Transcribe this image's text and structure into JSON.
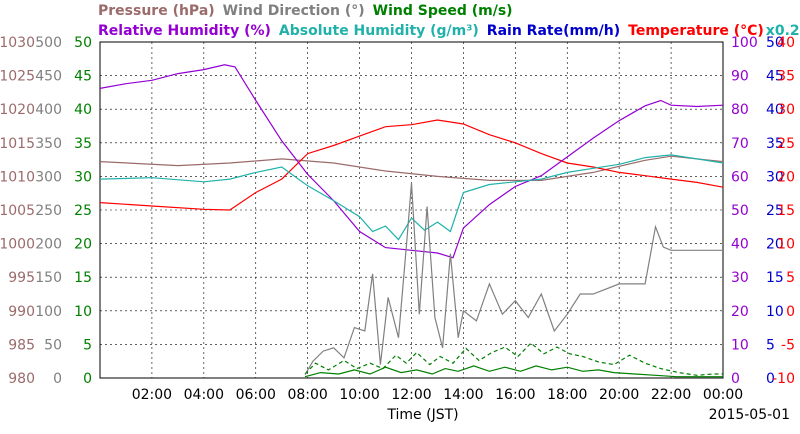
{
  "chart_data": {
    "type": "line",
    "date": "2015-05-01",
    "xlabel": "Time (JST)",
    "x_ticks": [
      "02:00",
      "04:00",
      "06:00",
      "08:00",
      "10:00",
      "12:00",
      "14:00",
      "16:00",
      "18:00",
      "20:00",
      "22:00",
      "00:00"
    ],
    "x_range_hours": [
      0,
      24
    ],
    "grid": true,
    "colors": {
      "pressure": "#9b6b6b",
      "wind_direction": "#808080",
      "wind_speed": "#008000",
      "relative_humidity": "#9400d3",
      "absolute_humidity": "#20b2aa",
      "rain_rate": "#0000cd",
      "temperature": "#ff0000"
    },
    "legend_top": [
      {
        "key": "pressure",
        "text": "Pressure (hPa)"
      },
      {
        "key": "wind_direction",
        "text": "Wind Direction (°)"
      },
      {
        "key": "wind_speed",
        "text": "Wind Speed (m/s)"
      }
    ],
    "legend_second": [
      {
        "key": "relative_humidity",
        "text": "Relative Humidity (%)"
      },
      {
        "key": "absolute_humidity",
        "text": "Absolute Humidity (g/m³)"
      },
      {
        "key": "rain_rate",
        "text": "Rain Rate(mm/h)"
      },
      {
        "key": "temperature",
        "text": "Temperature (°C)"
      },
      {
        "key": "absolute_humidity",
        "text": "x0.2"
      }
    ],
    "axes_left": [
      {
        "key": "pressure",
        "ticks": [
          "980",
          "985",
          "990",
          "995",
          "1000",
          "1005",
          "1010",
          "1015",
          "1020",
          "1025",
          "1030"
        ],
        "range": [
          980,
          1030
        ]
      },
      {
        "key": "wind_direction",
        "ticks": [
          "0",
          "50",
          "100",
          "150",
          "200",
          "250",
          "300",
          "350",
          "400",
          "450",
          "500"
        ],
        "range": [
          0,
          500
        ]
      },
      {
        "key": "wind_speed",
        "ticks": [
          "0",
          "5",
          "10",
          "15",
          "20",
          "25",
          "30",
          "35",
          "40",
          "45",
          "50"
        ],
        "range": [
          0,
          50
        ]
      }
    ],
    "axes_right": [
      {
        "key": "relative_humidity",
        "ticks": [
          "0",
          "10",
          "20",
          "30",
          "40",
          "50",
          "60",
          "70",
          "80",
          "90",
          "100"
        ],
        "range": [
          0,
          100
        ]
      },
      {
        "key": "rain_rate",
        "ticks": [
          "0",
          "5",
          "10",
          "15",
          "20",
          "25",
          "30",
          "35",
          "40",
          "45",
          "50"
        ],
        "range": [
          0,
          50
        ]
      },
      {
        "key": "temperature",
        "ticks": [
          "-10",
          "-5",
          "0",
          "5",
          "10",
          "15",
          "20",
          "25",
          "30",
          "35",
          "40"
        ],
        "range": [
          -10,
          40
        ]
      }
    ],
    "series": [
      {
        "key": "pressure",
        "axis": "pressure",
        "dash": false,
        "points": [
          [
            0,
            1012.2
          ],
          [
            3,
            1011.6
          ],
          [
            5,
            1012.0
          ],
          [
            7,
            1012.6
          ],
          [
            9,
            1012.0
          ],
          [
            11,
            1010.8
          ],
          [
            13,
            1010.0
          ],
          [
            15,
            1009.4
          ],
          [
            17,
            1009.4
          ],
          [
            19,
            1010.6
          ],
          [
            21,
            1012.4
          ],
          [
            22,
            1013.0
          ],
          [
            24,
            1012.2
          ]
        ]
      },
      {
        "key": "temperature",
        "axis": "temperature",
        "dash": false,
        "points": [
          [
            0,
            16.1
          ],
          [
            2,
            15.6
          ],
          [
            4,
            15.1
          ],
          [
            5,
            15.0
          ],
          [
            6,
            17.6
          ],
          [
            7,
            19.6
          ],
          [
            8,
            23.4
          ],
          [
            9,
            24.6
          ],
          [
            10,
            26.0
          ],
          [
            11,
            27.4
          ],
          [
            12,
            27.7
          ],
          [
            13,
            28.4
          ],
          [
            14,
            27.8
          ],
          [
            15,
            26.2
          ],
          [
            16,
            25.0
          ],
          [
            17,
            23.4
          ],
          [
            18,
            22.0
          ],
          [
            19,
            21.4
          ],
          [
            20,
            20.6
          ],
          [
            21,
            20.1
          ],
          [
            22,
            19.6
          ],
          [
            23,
            19.1
          ],
          [
            24,
            18.4
          ]
        ]
      },
      {
        "key": "relative_humidity",
        "axis": "relative_humidity",
        "dash": false,
        "points": [
          [
            0,
            86.2
          ],
          [
            1,
            87.6
          ],
          [
            2,
            88.6
          ],
          [
            3,
            90.6
          ],
          [
            4,
            91.8
          ],
          [
            4.8,
            93.2
          ],
          [
            5.2,
            92.6
          ],
          [
            6,
            82.6
          ],
          [
            7,
            70.6
          ],
          [
            8,
            60.6
          ],
          [
            9,
            52.8
          ],
          [
            10,
            43.6
          ],
          [
            11,
            38.8
          ],
          [
            12,
            38.0
          ],
          [
            13,
            37.2
          ],
          [
            13.6,
            35.8
          ],
          [
            14,
            44.6
          ],
          [
            15,
            51.6
          ],
          [
            16,
            57.0
          ],
          [
            17,
            60.2
          ],
          [
            18,
            65.8
          ],
          [
            19,
            71.4
          ],
          [
            20,
            76.6
          ],
          [
            21,
            81.0
          ],
          [
            21.6,
            82.6
          ],
          [
            22,
            81.2
          ],
          [
            23,
            80.8
          ],
          [
            24,
            81.2
          ]
        ]
      },
      {
        "key": "absolute_humidity",
        "axis": "wind_speed",
        "dash": false,
        "points": [
          [
            0,
            29.6
          ],
          [
            2,
            29.8
          ],
          [
            4,
            29.2
          ],
          [
            5,
            29.6
          ],
          [
            6,
            30.6
          ],
          [
            7,
            31.4
          ],
          [
            7.5,
            30.0
          ],
          [
            8,
            28.6
          ],
          [
            9,
            26.4
          ],
          [
            10,
            24.0
          ],
          [
            10.5,
            21.8
          ],
          [
            11,
            22.6
          ],
          [
            11.5,
            20.6
          ],
          [
            12,
            23.8
          ],
          [
            12.5,
            22.0
          ],
          [
            13,
            23.2
          ],
          [
            13.5,
            21.8
          ],
          [
            14,
            27.6
          ],
          [
            15,
            28.8
          ],
          [
            16,
            29.2
          ],
          [
            17,
            29.6
          ],
          [
            18,
            30.6
          ],
          [
            19,
            31.2
          ],
          [
            20,
            31.8
          ],
          [
            21,
            32.8
          ],
          [
            22,
            33.2
          ],
          [
            23,
            32.6
          ],
          [
            24,
            32.0
          ]
        ]
      },
      {
        "key": "wind_direction",
        "axis": "wind_direction",
        "dash": false,
        "points": [
          [
            7.9,
            5
          ],
          [
            8.2,
            25
          ],
          [
            8.6,
            40
          ],
          [
            9.0,
            45
          ],
          [
            9.4,
            30
          ],
          [
            9.8,
            75
          ],
          [
            10.2,
            70
          ],
          [
            10.5,
            155
          ],
          [
            10.8,
            20
          ],
          [
            11.1,
            120
          ],
          [
            11.5,
            60
          ],
          [
            11.8,
            195
          ],
          [
            12.0,
            290
          ],
          [
            12.3,
            95
          ],
          [
            12.6,
            255
          ],
          [
            12.9,
            90
          ],
          [
            13.2,
            45
          ],
          [
            13.5,
            185
          ],
          [
            13.8,
            60
          ],
          [
            14.0,
            100
          ],
          [
            14.5,
            85
          ],
          [
            15,
            140
          ],
          [
            15.5,
            95
          ],
          [
            16,
            115
          ],
          [
            16.5,
            90
          ],
          [
            17,
            125
          ],
          [
            17.5,
            70
          ],
          [
            18,
            95
          ],
          [
            18.5,
            125
          ],
          [
            19,
            125
          ],
          [
            20,
            140
          ],
          [
            21,
            140
          ],
          [
            21.4,
            225
          ],
          [
            21.7,
            195
          ],
          [
            22,
            190
          ],
          [
            23,
            190
          ],
          [
            24,
            190
          ]
        ]
      },
      {
        "key": "wind_speed",
        "axis": "wind_speed",
        "dash": true,
        "points": [
          [
            7.9,
            0.6
          ],
          [
            8.3,
            2.2
          ],
          [
            8.8,
            1.2
          ],
          [
            9.4,
            2.6
          ],
          [
            9.9,
            1.4
          ],
          [
            10.4,
            2.2
          ],
          [
            10.9,
            1.4
          ],
          [
            11.4,
            3.4
          ],
          [
            11.8,
            2.2
          ],
          [
            12.2,
            3.8
          ],
          [
            12.7,
            2.0
          ],
          [
            13.1,
            3.2
          ],
          [
            13.6,
            2.2
          ],
          [
            14.1,
            4.4
          ],
          [
            14.6,
            2.6
          ],
          [
            15.1,
            3.8
          ],
          [
            15.6,
            4.6
          ],
          [
            16.1,
            3.2
          ],
          [
            16.6,
            5.2
          ],
          [
            17.1,
            3.6
          ],
          [
            17.6,
            4.6
          ],
          [
            18.1,
            3.6
          ],
          [
            18.6,
            3.2
          ],
          [
            19.2,
            2.4
          ],
          [
            19.8,
            2.0
          ],
          [
            20.4,
            3.4
          ],
          [
            21.0,
            2.2
          ],
          [
            21.6,
            1.4
          ],
          [
            22.3,
            0.8
          ],
          [
            23.0,
            0.4
          ],
          [
            23.6,
            0.6
          ],
          [
            24,
            0.6
          ]
        ]
      },
      {
        "key": "wind_speed",
        "axis": "wind_speed",
        "dash": false,
        "points": [
          [
            7.9,
            0.2
          ],
          [
            8.5,
            0.8
          ],
          [
            9.2,
            0.6
          ],
          [
            9.8,
            1.2
          ],
          [
            10.4,
            0.6
          ],
          [
            11.0,
            1.6
          ],
          [
            11.6,
            0.8
          ],
          [
            12.2,
            1.2
          ],
          [
            12.8,
            0.6
          ],
          [
            13.3,
            1.4
          ],
          [
            13.8,
            1.0
          ],
          [
            14.4,
            1.8
          ],
          [
            15.0,
            1.0
          ],
          [
            15.6,
            1.6
          ],
          [
            16.2,
            1.0
          ],
          [
            16.8,
            1.8
          ],
          [
            17.4,
            1.2
          ],
          [
            18.0,
            1.6
          ],
          [
            18.6,
            1.0
          ],
          [
            19.2,
            1.2
          ],
          [
            19.8,
            0.8
          ],
          [
            20.6,
            0.6
          ],
          [
            21.4,
            0.4
          ],
          [
            22.2,
            0.2
          ],
          [
            23.0,
            0.2
          ],
          [
            24,
            0.2
          ]
        ]
      }
    ]
  }
}
